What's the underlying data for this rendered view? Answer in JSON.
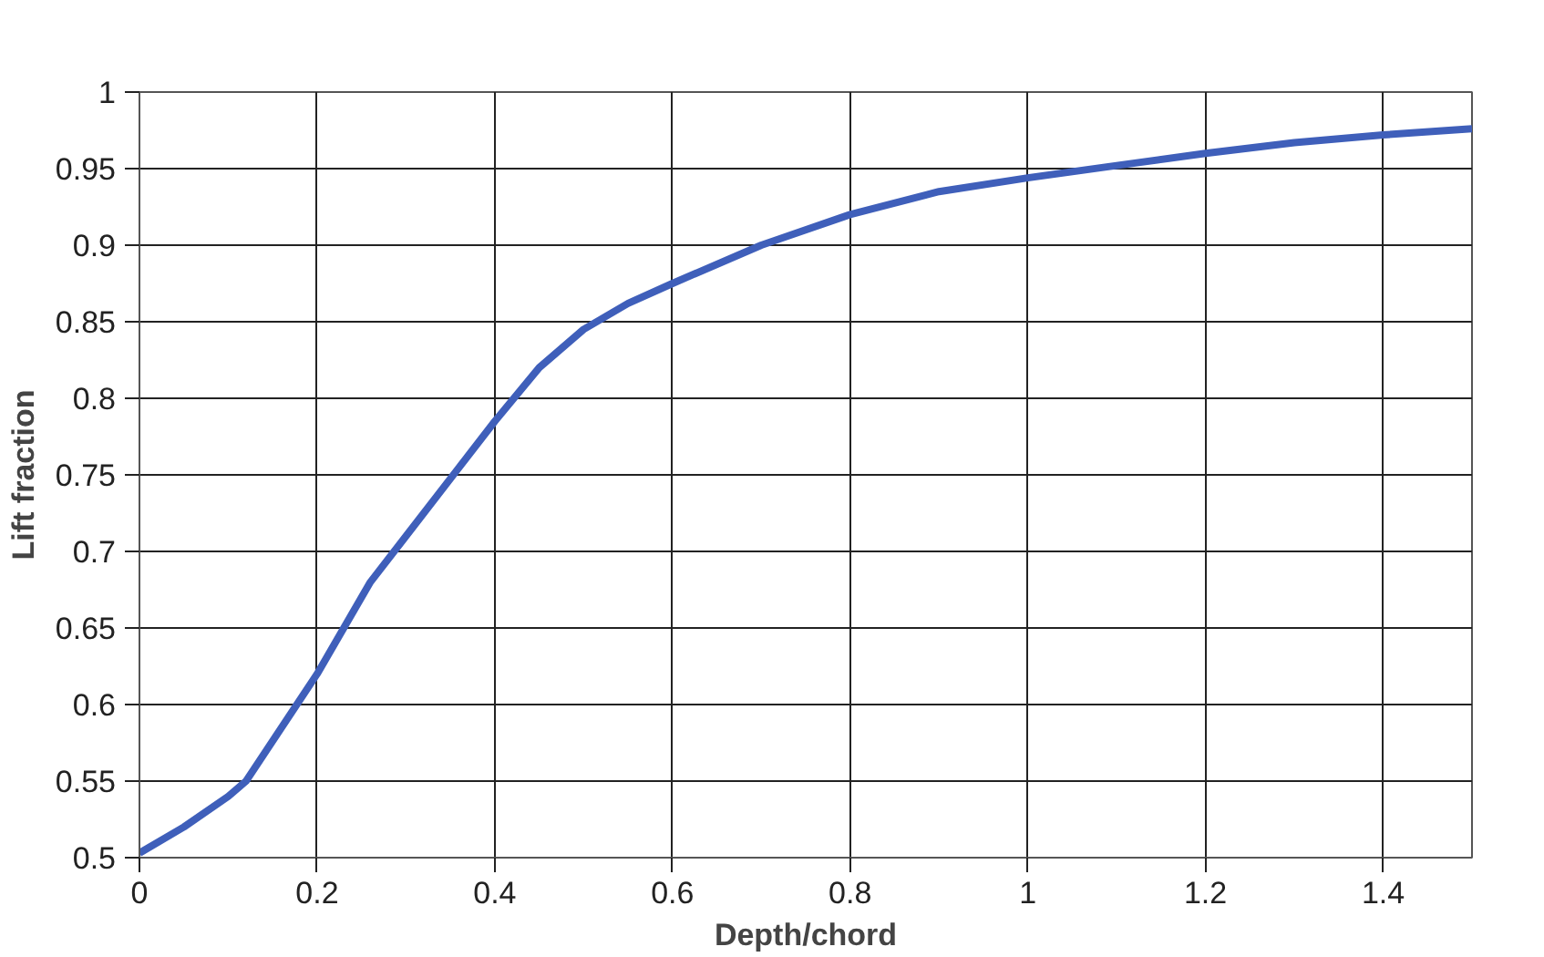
{
  "chart_data": {
    "type": "line",
    "xlabel": "Depth/chord",
    "ylabel": "Lift fraction",
    "x": [
      0,
      0.05,
      0.1,
      0.12,
      0.2,
      0.26,
      0.3,
      0.36,
      0.4,
      0.45,
      0.5,
      0.55,
      0.6,
      0.7,
      0.8,
      0.9,
      1.0,
      1.1,
      1.2,
      1.3,
      1.4,
      1.5
    ],
    "series": [
      {
        "color": "#3f5fba",
        "values": [
          0.503,
          0.52,
          0.54,
          0.55,
          0.62,
          0.68,
          0.71,
          0.755,
          0.785,
          0.82,
          0.845,
          0.862,
          0.875,
          0.9,
          0.92,
          0.935,
          0.944,
          0.952,
          0.96,
          0.967,
          0.972,
          0.976
        ]
      }
    ],
    "xlim": [
      0,
      1.5
    ],
    "ylim": [
      0.5,
      1
    ],
    "xticks": [
      0,
      0.2,
      0.4,
      0.6,
      0.8,
      1,
      1.2,
      1.4
    ],
    "yticks": [
      0.5,
      0.55,
      0.6,
      0.65,
      0.7,
      0.75,
      0.8,
      0.85,
      0.9,
      0.95,
      1
    ],
    "grid": true,
    "marker": "none",
    "line_style": "solid"
  }
}
